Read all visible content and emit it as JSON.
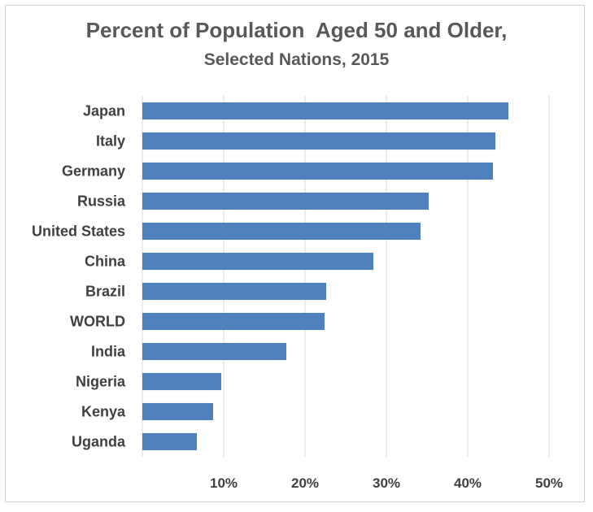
{
  "chart_data": {
    "type": "bar",
    "orientation": "horizontal",
    "title": "Percent of Population  Aged 50 and Older,",
    "subtitle": "Selected Nations, 2015",
    "xlabel": "",
    "ylabel": "",
    "categories": [
      "Japan",
      "Italy",
      "Germany",
      "Russia",
      "United States",
      "China",
      "Brazil",
      "WORLD",
      "India",
      "Nigeria",
      "Kenya",
      "Uganda"
    ],
    "values": [
      45.0,
      43.4,
      43.1,
      35.2,
      34.2,
      28.4,
      22.6,
      22.4,
      17.7,
      9.7,
      8.7,
      6.7
    ],
    "xlim": [
      0,
      50
    ],
    "xticks": [
      10,
      20,
      30,
      40,
      50
    ],
    "xtick_labels": [
      "10%",
      "20%",
      "30%",
      "40%",
      "50%"
    ],
    "grid": "vertical",
    "legend": "none",
    "bar_color": "#4f81bd",
    "grid_color": "#d9d9d9",
    "text_color": "#404040"
  }
}
